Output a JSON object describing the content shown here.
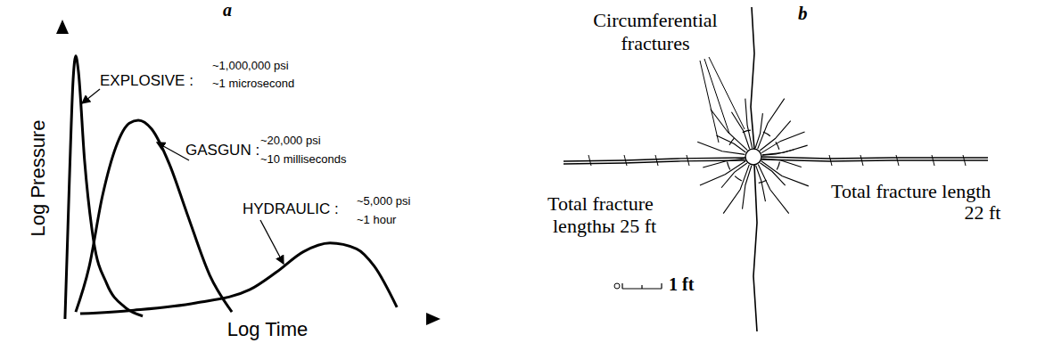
{
  "chart_data": {
    "type": "line",
    "title": "a",
    "x_label": "Log Time",
    "y_label": "Log Pressure",
    "xlim": [
      0,
      100
    ],
    "ylim": [
      0,
      100
    ],
    "tick_labels": false,
    "series": [
      {
        "name": "EXPLOSIVE :",
        "annotation": [
          "~1,000,000 psi",
          "~1 microsecond"
        ],
        "color": "#000000",
        "line_style": "solid",
        "x": [
          0.7,
          1.9,
          2.9,
          3.6,
          4.3,
          6,
          8.4,
          12,
          16.9,
          21.7
        ],
        "values": [
          0,
          48,
          82,
          90,
          85,
          54,
          27,
          12,
          4,
          1
        ]
      },
      {
        "name": "GASGUN :",
        "annotation": [
          "~20,000 psi",
          "~10 milliseconds"
        ],
        "color": "#000000",
        "line_style": "solid",
        "x": [
          3.6,
          7.2,
          10.8,
          14.5,
          18.1,
          20.5,
          24.1,
          28.9,
          33.7,
          39.8,
          45.8
        ],
        "values": [
          2.4,
          17.7,
          42,
          59,
          67,
          68,
          65,
          53,
          36,
          15,
          2.4
        ]
      },
      {
        "name": "HYDRAULIC :",
        "annotation": [
          "~5,000 psi",
          "~1 hour"
        ],
        "color": "#000000",
        "line_style": "solid",
        "x": [
          4.8,
          19.3,
          36.1,
          50.6,
          57.8,
          65.1,
          72.3,
          79.5,
          84.3,
          90.4
        ],
        "values": [
          1.8,
          3,
          5.5,
          10,
          16,
          23,
          26,
          24,
          18,
          4
        ]
      }
    ]
  },
  "diagram": {
    "label": "b",
    "callouts": [
      {
        "text": [
          "Circumferential",
          "fractures"
        ]
      },
      {
        "text": [
          "Total fracture",
          "lengthы 25 ft"
        ]
      },
      {
        "text": [
          "Total fracture length",
          "22 ft"
        ]
      }
    ],
    "scale_bar": "1 ft"
  }
}
